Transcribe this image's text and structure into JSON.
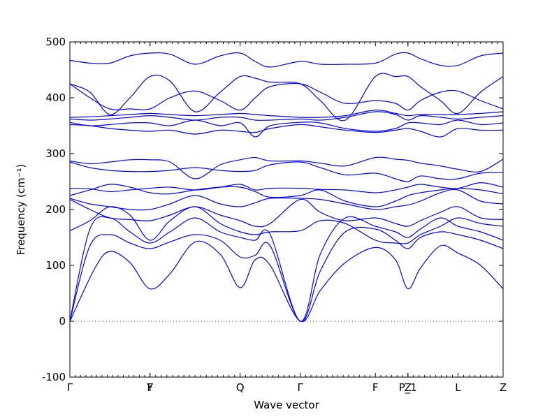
{
  "chart_data": {
    "type": "line",
    "xlabel": "Wave vector",
    "ylabel": "Frequency (cm⁻¹)",
    "ylim": [
      -100,
      500
    ],
    "yticks": [
      -100,
      0,
      100,
      200,
      300,
      400,
      500
    ],
    "grid": false,
    "legend": "none",
    "band_color": "#0000ff",
    "xlim": [
      0,
      8.65
    ],
    "special_points": [
      {
        "label": "Γ",
        "x": 0
      },
      {
        "label": "Y",
        "x": 1.6
      },
      {
        "label": "F",
        "x": 1.6
      },
      {
        "label": "Q",
        "x": 3.4
      },
      {
        "label": "Γ",
        "x": 4.6
      },
      {
        "label": "F",
        "x": 6.1
      },
      {
        "label": "P_1",
        "x": 6.75
      },
      {
        "label": "Z",
        "x": 6.75
      },
      {
        "label": "L",
        "x": 7.75
      },
      {
        "label": "Z",
        "x": 8.65
      }
    ],
    "series": [
      {
        "x": [
          0,
          0.5,
          0.8,
          1.2,
          1.6,
          2.0,
          2.5,
          3.0,
          3.4,
          3.7,
          4.0,
          4.6,
          5.0,
          5.5,
          6.1,
          6.5,
          6.75,
          7.0,
          7.4,
          7.75,
          8.2,
          8.65
        ],
        "values": [
          0,
          95,
          125,
          105,
          58,
          85,
          142,
          120,
          60,
          110,
          100,
          0,
          55,
          105,
          132,
          110,
          58,
          95,
          135,
          122,
          100,
          58
        ]
      },
      {
        "x": [
          0,
          0.4,
          0.8,
          1.2,
          1.6,
          2.0,
          2.5,
          3.0,
          3.4,
          3.7,
          4.0,
          4.6,
          5.0,
          5.5,
          6.1,
          6.5,
          6.75,
          7.0,
          7.4,
          7.75,
          8.2,
          8.65
        ],
        "values": [
          0,
          135,
          155,
          140,
          130,
          142,
          155,
          145,
          115,
          118,
          135,
          0,
          90,
          160,
          165,
          145,
          130,
          150,
          160,
          155,
          145,
          130
        ]
      },
      {
        "x": [
          0,
          0.4,
          0.8,
          1.2,
          1.6,
          2.0,
          2.5,
          3.0,
          3.4,
          3.7,
          4.0,
          4.6,
          5.0,
          5.5,
          6.1,
          6.5,
          6.75,
          7.0,
          7.4,
          7.75,
          8.2,
          8.65
        ],
        "values": [
          0,
          165,
          185,
          160,
          140,
          160,
          185,
          160,
          150,
          145,
          155,
          0,
          120,
          185,
          170,
          160,
          150,
          165,
          185,
          170,
          160,
          145
        ]
      },
      {
        "x": [
          0,
          0.4,
          0.8,
          1.2,
          1.6,
          2.0,
          2.5,
          3.0,
          3.4,
          3.7,
          4.0,
          4.6,
          5.0,
          5.5,
          6.1,
          6.5,
          6.75,
          7.0,
          7.4,
          7.75,
          8.2,
          8.65
        ],
        "values": [
          162,
          180,
          205,
          190,
          145,
          180,
          205,
          175,
          160,
          155,
          160,
          162,
          180,
          175,
          145,
          140,
          140,
          155,
          170,
          185,
          175,
          170
        ]
      },
      {
        "x": [
          0,
          0.4,
          0.8,
          1.2,
          1.6,
          2.0,
          2.5,
          3.0,
          3.4,
          3.7,
          4.0,
          4.6,
          5.0,
          5.5,
          6.1,
          6.5,
          6.75,
          7.0,
          7.4,
          7.75,
          8.2,
          8.65
        ],
        "values": [
          218,
          200,
          185,
          182,
          180,
          190,
          205,
          190,
          180,
          170,
          175,
          218,
          195,
          180,
          185,
          175,
          170,
          180,
          195,
          205,
          185,
          182
        ]
      },
      {
        "x": [
          0,
          0.4,
          0.8,
          1.2,
          1.6,
          2.0,
          2.5,
          3.0,
          3.4,
          3.7,
          4.0,
          4.6,
          5.0,
          5.5,
          6.1,
          6.5,
          6.75,
          7.0,
          7.4,
          7.75,
          8.2,
          8.65
        ],
        "values": [
          220,
          210,
          205,
          200,
          200,
          210,
          225,
          210,
          205,
          212,
          220,
          220,
          218,
          210,
          200,
          205,
          208,
          215,
          230,
          235,
          215,
          210
        ]
      },
      {
        "x": [
          0,
          0.4,
          0.8,
          1.2,
          1.6,
          2.0,
          2.5,
          3.0,
          3.4,
          3.7,
          4.0,
          4.6,
          5.0,
          5.5,
          6.1,
          6.5,
          6.75,
          7.0,
          7.4,
          7.75,
          8.2,
          8.65
        ],
        "values": [
          225,
          235,
          245,
          240,
          230,
          228,
          235,
          240,
          240,
          232,
          222,
          225,
          235,
          215,
          205,
          215,
          225,
          230,
          235,
          238,
          235,
          228
        ]
      },
      {
        "x": [
          0,
          0.4,
          0.8,
          1.2,
          1.6,
          2.0,
          2.5,
          3.0,
          3.4,
          3.7,
          4.0,
          4.6,
          5.0,
          5.5,
          6.1,
          6.5,
          6.75,
          7.0,
          7.4,
          7.75,
          8.2,
          8.65
        ],
        "values": [
          238,
          237,
          232,
          235,
          238,
          240,
          235,
          240,
          245,
          235,
          238,
          238,
          236,
          235,
          230,
          235,
          240,
          245,
          240,
          238,
          248,
          240
        ]
      },
      {
        "x": [
          0,
          0.4,
          0.8,
          1.2,
          1.6,
          2.0,
          2.5,
          3.0,
          3.4,
          3.7,
          4.0,
          4.6,
          5.0,
          5.5,
          6.1,
          6.5,
          6.75,
          7.0,
          7.4,
          7.75,
          8.2,
          8.65
        ],
        "values": [
          285,
          275,
          270,
          268,
          268,
          270,
          275,
          270,
          268,
          270,
          280,
          285,
          275,
          262,
          265,
          255,
          250,
          260,
          255,
          255,
          265,
          266
        ]
      },
      {
        "x": [
          0,
          0.4,
          0.8,
          1.2,
          1.6,
          2.0,
          2.5,
          3.0,
          3.4,
          3.7,
          4.0,
          4.6,
          5.0,
          5.5,
          6.1,
          6.5,
          6.75,
          7.0,
          7.4,
          7.75,
          8.2,
          8.65
        ],
        "values": [
          287,
          282,
          285,
          289,
          289,
          285,
          255,
          280,
          289,
          293,
          287,
          287,
          283,
          278,
          293,
          290,
          288,
          283,
          278,
          272,
          268,
          290
        ]
      },
      {
        "x": [
          0,
          0.4,
          0.8,
          1.2,
          1.6,
          2.0,
          2.5,
          3.0,
          3.4,
          3.7,
          4.0,
          4.6,
          5.0,
          5.5,
          6.1,
          6.5,
          6.75,
          7.0,
          7.4,
          7.75,
          8.2,
          8.65
        ],
        "values": [
          352,
          350,
          345,
          342,
          340,
          342,
          335,
          342,
          340,
          338,
          345,
          352,
          348,
          342,
          338,
          342,
          345,
          340,
          330,
          345,
          342,
          342
        ]
      },
      {
        "x": [
          0,
          0.4,
          0.8,
          1.2,
          1.6,
          2.0,
          2.5,
          3.0,
          3.4,
          3.7,
          4.0,
          4.6,
          5.0,
          5.5,
          6.1,
          6.5,
          6.75,
          7.0,
          7.4,
          7.75,
          8.2,
          8.65
        ],
        "values": [
          356,
          350,
          352,
          355,
          355,
          350,
          360,
          350,
          355,
          330,
          350,
          356,
          355,
          345,
          340,
          345,
          355,
          355,
          352,
          360,
          352,
          355
        ]
      },
      {
        "x": [
          0,
          0.4,
          0.8,
          1.2,
          1.6,
          2.0,
          2.5,
          3.0,
          3.4,
          3.7,
          4.0,
          4.6,
          5.0,
          5.5,
          6.1,
          6.5,
          6.75,
          7.0,
          7.4,
          7.75,
          8.2,
          8.65
        ],
        "values": [
          362,
          360,
          362,
          365,
          368,
          365,
          360,
          365,
          365,
          360,
          360,
          362,
          360,
          365,
          375,
          370,
          360,
          368,
          365,
          362,
          365,
          368
        ]
      },
      {
        "x": [
          0,
          0.4,
          0.8,
          1.2,
          1.6,
          2.0,
          2.5,
          3.0,
          3.4,
          3.7,
          4.0,
          4.6,
          5.0,
          5.5,
          6.1,
          6.5,
          6.75,
          7.0,
          7.4,
          7.75,
          8.2,
          8.65
        ],
        "values": [
          365,
          366,
          368,
          370,
          372,
          370,
          368,
          370,
          372,
          370,
          368,
          365,
          365,
          368,
          378,
          372,
          368,
          370,
          370,
          370,
          372,
          375
        ]
      },
      {
        "x": [
          0,
          0.4,
          0.8,
          1.2,
          1.6,
          2.0,
          2.5,
          3.0,
          3.4,
          3.7,
          4.0,
          4.6,
          5.0,
          5.5,
          6.1,
          6.5,
          6.75,
          7.0,
          7.4,
          7.75,
          8.2,
          8.65
        ],
        "values": [
          425,
          400,
          380,
          380,
          380,
          400,
          412,
          395,
          378,
          400,
          420,
          425,
          410,
          390,
          395,
          390,
          378,
          395,
          410,
          412,
          395,
          380
        ]
      },
      {
        "x": [
          0,
          0.4,
          0.8,
          1.2,
          1.6,
          2.0,
          2.5,
          3.0,
          3.4,
          3.7,
          4.0,
          4.6,
          5.0,
          5.5,
          6.1,
          6.5,
          6.75,
          7.0,
          7.4,
          7.75,
          8.2,
          8.65
        ],
        "values": [
          425,
          410,
          370,
          400,
          438,
          430,
          375,
          410,
          438,
          435,
          428,
          425,
          395,
          360,
          438,
          438,
          438,
          420,
          395,
          372,
          410,
          438
        ]
      },
      {
        "x": [
          0,
          0.4,
          0.8,
          1.2,
          1.6,
          2.0,
          2.5,
          3.0,
          3.4,
          3.7,
          4.0,
          4.6,
          5.0,
          5.5,
          6.1,
          6.5,
          6.75,
          7.0,
          7.4,
          7.75,
          8.2,
          8.65
        ],
        "values": [
          467,
          462,
          462,
          475,
          480,
          478,
          460,
          475,
          480,
          465,
          455,
          465,
          460,
          460,
          462,
          478,
          480,
          470,
          458,
          458,
          475,
          480
        ]
      }
    ]
  }
}
